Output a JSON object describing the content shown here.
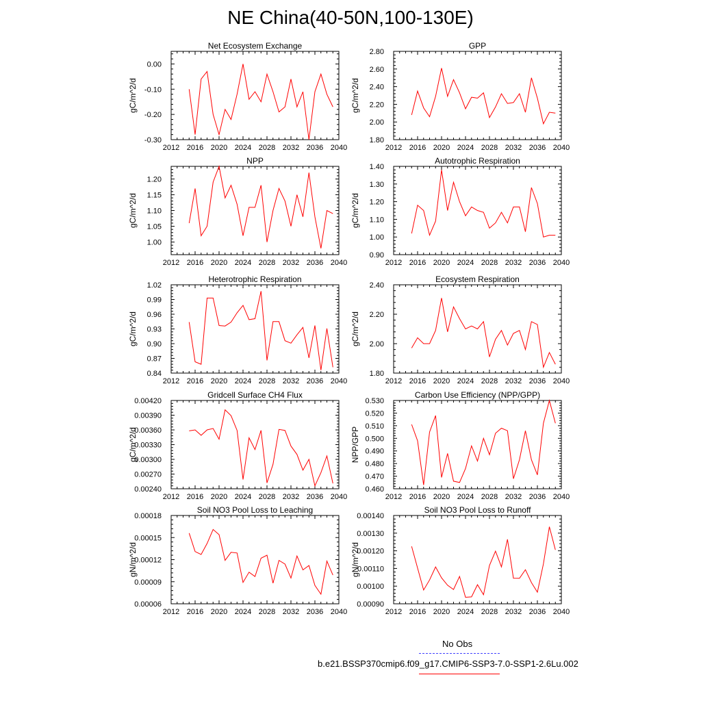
{
  "title": "NE China(40-50N,100-130E)",
  "colors": {
    "series": "#ff0000",
    "obs": "#4040ff",
    "axis": "#000000"
  },
  "legend": {
    "obs_label": "No Obs",
    "model_label": "b.e21.BSSP370cmip6.f09_g17.CMIP6-SSP3-7.0-SSP1-2.6Lu.002"
  },
  "chart_data": [
    {
      "type": "line",
      "title": "Net Ecosystem Exchange",
      "ylabel": "gC/m^2/d",
      "xlabel": "",
      "xlim": [
        2012,
        2040
      ],
      "ylim": [
        -0.3,
        0.05
      ],
      "xticks": [
        "2012",
        "2016",
        "2020",
        "2024",
        "2028",
        "2032",
        "2036",
        "2040"
      ],
      "yticks": [
        "-0.30",
        "-0.20",
        "-0.10",
        "0.00"
      ],
      "ytick_values": [
        -0.3,
        -0.2,
        -0.1,
        0.0
      ],
      "series": [
        {
          "x": [
            2015,
            2016,
            2017,
            2018,
            2019,
            2020,
            2021,
            2022,
            2023,
            2024,
            2025,
            2026,
            2027,
            2028,
            2029,
            2030,
            2031,
            2032,
            2033,
            2034,
            2035,
            2036,
            2037,
            2038,
            2039
          ],
          "values": [
            -0.1,
            -0.28,
            -0.06,
            -0.03,
            -0.2,
            -0.28,
            -0.18,
            -0.22,
            -0.12,
            0.0,
            -0.14,
            -0.11,
            -0.15,
            -0.04,
            -0.11,
            -0.19,
            -0.17,
            -0.06,
            -0.17,
            -0.11,
            -0.3,
            -0.11,
            -0.04,
            -0.12,
            -0.17
          ]
        }
      ]
    },
    {
      "type": "line",
      "title": "GPP",
      "ylabel": "gC/m^2/d",
      "xlabel": "",
      "xlim": [
        2012,
        2040
      ],
      "ylim": [
        1.8,
        2.8
      ],
      "xticks": [
        "2012",
        "2016",
        "2020",
        "2024",
        "2028",
        "2032",
        "2036",
        "2040"
      ],
      "yticks": [
        "1.80",
        "2.00",
        "2.20",
        "2.40",
        "2.60",
        "2.80"
      ],
      "ytick_values": [
        1.8,
        2.0,
        2.2,
        2.4,
        2.6,
        2.8
      ],
      "series": [
        {
          "x": [
            2015,
            2016,
            2017,
            2018,
            2019,
            2020,
            2021,
            2022,
            2023,
            2024,
            2025,
            2026,
            2027,
            2028,
            2029,
            2030,
            2031,
            2032,
            2033,
            2034,
            2035,
            2036,
            2037,
            2038,
            2039
          ],
          "values": [
            2.08,
            2.35,
            2.16,
            2.06,
            2.29,
            2.61,
            2.29,
            2.48,
            2.33,
            2.15,
            2.28,
            2.27,
            2.33,
            2.05,
            2.17,
            2.32,
            2.21,
            2.22,
            2.32,
            2.11,
            2.5,
            2.27,
            1.98,
            2.11,
            2.1
          ]
        }
      ]
    },
    {
      "type": "line",
      "title": "NPP",
      "ylabel": "gC/m^2/d",
      "xlabel": "",
      "xlim": [
        2012,
        2040
      ],
      "ylim": [
        0.96,
        1.24
      ],
      "xticks": [
        "2012",
        "2016",
        "2020",
        "2024",
        "2028",
        "2032",
        "2036",
        "2040"
      ],
      "yticks": [
        "1.00",
        "1.05",
        "1.10",
        "1.15",
        "1.20"
      ],
      "ytick_values": [
        1.0,
        1.05,
        1.1,
        1.15,
        1.2
      ],
      "series": [
        {
          "x": [
            2015,
            2016,
            2017,
            2018,
            2019,
            2020,
            2021,
            2022,
            2023,
            2024,
            2025,
            2026,
            2027,
            2028,
            2029,
            2030,
            2031,
            2032,
            2033,
            2034,
            2035,
            2036,
            2037,
            2038,
            2039
          ],
          "values": [
            1.06,
            1.17,
            1.02,
            1.05,
            1.19,
            1.24,
            1.14,
            1.18,
            1.12,
            1.02,
            1.11,
            1.11,
            1.18,
            1.0,
            1.1,
            1.17,
            1.13,
            1.05,
            1.15,
            1.08,
            1.22,
            1.08,
            0.98,
            1.1,
            1.09
          ]
        }
      ]
    },
    {
      "type": "line",
      "title": "Autotrophic Respiration",
      "ylabel": "gC/m^2/d",
      "xlabel": "",
      "xlim": [
        2012,
        2040
      ],
      "ylim": [
        0.9,
        1.4
      ],
      "xticks": [
        "2012",
        "2016",
        "2020",
        "2024",
        "2028",
        "2032",
        "2036",
        "2040"
      ],
      "yticks": [
        "0.90",
        "1.00",
        "1.10",
        "1.20",
        "1.30",
        "1.40"
      ],
      "ytick_values": [
        0.9,
        1.0,
        1.1,
        1.2,
        1.3,
        1.4
      ],
      "series": [
        {
          "x": [
            2015,
            2016,
            2017,
            2018,
            2019,
            2020,
            2021,
            2022,
            2023,
            2024,
            2025,
            2026,
            2027,
            2028,
            2029,
            2030,
            2031,
            2032,
            2033,
            2034,
            2035,
            2036,
            2037,
            2038,
            2039
          ],
          "values": [
            1.02,
            1.18,
            1.15,
            1.01,
            1.09,
            1.38,
            1.15,
            1.31,
            1.2,
            1.12,
            1.17,
            1.15,
            1.14,
            1.05,
            1.08,
            1.14,
            1.08,
            1.17,
            1.17,
            1.03,
            1.28,
            1.19,
            1.0,
            1.01,
            1.01
          ]
        }
      ]
    },
    {
      "type": "line",
      "title": "Heterotrophic Respiration",
      "ylabel": "gC/m^2/d",
      "xlabel": "",
      "xlim": [
        2012,
        2040
      ],
      "ylim": [
        0.84,
        1.02
      ],
      "xticks": [
        "2012",
        "2016",
        "2020",
        "2024",
        "2028",
        "2032",
        "2036",
        "2040"
      ],
      "yticks": [
        "0.84",
        "0.87",
        "0.90",
        "0.93",
        "0.96",
        "0.99",
        "1.02"
      ],
      "ytick_values": [
        0.84,
        0.87,
        0.9,
        0.93,
        0.96,
        0.99,
        1.02
      ],
      "series": [
        {
          "x": [
            2015,
            2016,
            2017,
            2018,
            2019,
            2020,
            2021,
            2022,
            2023,
            2024,
            2025,
            2026,
            2027,
            2028,
            2029,
            2030,
            2031,
            2032,
            2033,
            2034,
            2035,
            2036,
            2037,
            2038,
            2039
          ],
          "values": [
            0.944,
            0.863,
            0.858,
            0.993,
            0.993,
            0.937,
            0.936,
            0.944,
            0.963,
            0.978,
            0.949,
            0.951,
            1.007,
            0.866,
            0.945,
            0.945,
            0.906,
            0.901,
            0.918,
            0.933,
            0.871,
            0.937,
            0.846,
            0.931,
            0.852
          ]
        }
      ]
    },
    {
      "type": "line",
      "title": "Ecosystem Respiration",
      "ylabel": "gC/m^2/d",
      "xlabel": "",
      "xlim": [
        2012,
        2040
      ],
      "ylim": [
        1.8,
        2.4
      ],
      "xticks": [
        "2012",
        "2016",
        "2020",
        "2024",
        "2028",
        "2032",
        "2036",
        "2040"
      ],
      "yticks": [
        "1.80",
        "2.00",
        "2.20",
        "2.40"
      ],
      "ytick_values": [
        1.8,
        2.0,
        2.2,
        2.4
      ],
      "series": [
        {
          "x": [
            2015,
            2016,
            2017,
            2018,
            2019,
            2020,
            2021,
            2022,
            2023,
            2024,
            2025,
            2026,
            2027,
            2028,
            2029,
            2030,
            2031,
            2032,
            2033,
            2034,
            2035,
            2036,
            2037,
            2038,
            2039
          ],
          "values": [
            1.97,
            2.04,
            2.0,
            2.0,
            2.09,
            2.31,
            2.08,
            2.25,
            2.17,
            2.1,
            2.12,
            2.1,
            2.15,
            1.91,
            2.03,
            2.09,
            1.99,
            2.07,
            2.09,
            1.96,
            2.15,
            2.13,
            1.84,
            1.94,
            1.86
          ]
        }
      ]
    },
    {
      "type": "line",
      "title": "Gridcell Surface CH4 Flux",
      "ylabel": "gC/m^2/d",
      "xlabel": "",
      "xlim": [
        2012,
        2040
      ],
      "ylim": [
        0.0024,
        0.0042
      ],
      "xticks": [
        "2012",
        "2016",
        "2020",
        "2024",
        "2028",
        "2032",
        "2036",
        "2040"
      ],
      "yticks": [
        "0.00240",
        "0.00270",
        "0.00300",
        "0.00330",
        "0.00360",
        "0.00390",
        "0.00420"
      ],
      "ytick_values": [
        0.0024,
        0.0027,
        0.003,
        0.0033,
        0.0036,
        0.0039,
        0.0042
      ],
      "series": [
        {
          "x": [
            2015,
            2016,
            2017,
            2018,
            2019,
            2020,
            2021,
            2022,
            2023,
            2024,
            2025,
            2026,
            2027,
            2028,
            2029,
            2030,
            2031,
            2032,
            2033,
            2034,
            2035,
            2036,
            2037,
            2038,
            2039
          ],
          "values": [
            0.00358,
            0.0036,
            0.00349,
            0.0036,
            0.00363,
            0.00341,
            0.00401,
            0.00389,
            0.00359,
            0.00259,
            0.00344,
            0.0032,
            0.00359,
            0.00252,
            0.0029,
            0.00361,
            0.00359,
            0.00327,
            0.0031,
            0.00278,
            0.003,
            0.00246,
            0.00273,
            0.00307,
            0.00251
          ]
        }
      ]
    },
    {
      "type": "line",
      "title": "Carbon Use Efficiency (NPP/GPP)",
      "ylabel": "NPP/GPP",
      "xlabel": "",
      "xlim": [
        2012,
        2040
      ],
      "ylim": [
        0.46,
        0.53
      ],
      "xticks": [
        "2012",
        "2016",
        "2020",
        "2024",
        "2028",
        "2032",
        "2036",
        "2040"
      ],
      "yticks": [
        "0.460",
        "0.470",
        "0.480",
        "0.490",
        "0.500",
        "0.510",
        "0.520",
        "0.530"
      ],
      "ytick_values": [
        0.46,
        0.47,
        0.48,
        0.49,
        0.5,
        0.51,
        0.52,
        0.53
      ],
      "series": [
        {
          "x": [
            2015,
            2016,
            2017,
            2018,
            2019,
            2020,
            2021,
            2022,
            2023,
            2024,
            2025,
            2026,
            2027,
            2028,
            2029,
            2030,
            2031,
            2032,
            2033,
            2034,
            2035,
            2036,
            2037,
            2038,
            2039
          ],
          "values": [
            0.511,
            0.498,
            0.463,
            0.505,
            0.518,
            0.469,
            0.488,
            0.466,
            0.465,
            0.476,
            0.494,
            0.482,
            0.5,
            0.487,
            0.504,
            0.508,
            0.506,
            0.468,
            0.483,
            0.506,
            0.483,
            0.471,
            0.512,
            0.53,
            0.512
          ]
        }
      ]
    },
    {
      "type": "line",
      "title": "Soil NO3 Pool Loss to Leaching",
      "ylabel": "gN/m^2/d",
      "xlabel": "",
      "xlim": [
        2012,
        2040
      ],
      "ylim": [
        6e-05,
        0.00018
      ],
      "xticks": [
        "2012",
        "2016",
        "2020",
        "2024",
        "2028",
        "2032",
        "2036",
        "2040"
      ],
      "yticks": [
        "0.00006",
        "0.00009",
        "0.00012",
        "0.00015",
        "0.00018"
      ],
      "ytick_values": [
        6e-05,
        9e-05,
        0.00012,
        0.00015,
        0.00018
      ],
      "series": [
        {
          "x": [
            2015,
            2016,
            2017,
            2018,
            2019,
            2020,
            2021,
            2022,
            2023,
            2024,
            2025,
            2026,
            2027,
            2028,
            2029,
            2030,
            2031,
            2032,
            2033,
            2034,
            2035,
            2036,
            2037,
            2038,
            2039
          ],
          "values": [
            0.000156,
            0.000131,
            0.000127,
            0.000142,
            0.000161,
            0.000154,
            0.000119,
            0.00013,
            0.000129,
            8.9e-05,
            0.000103,
            9.7e-05,
            0.000122,
            0.000126,
            8.8e-05,
            0.000119,
            0.000114,
            9.5e-05,
            0.000125,
            0.000106,
            0.000112,
            8.5e-05,
            7.3e-05,
            0.000118,
            9.9e-05
          ]
        }
      ]
    },
    {
      "type": "line",
      "title": "Soil NO3 Pool Loss to Runoff",
      "ylabel": "gN/m^2/d",
      "xlabel": "",
      "xlim": [
        2012,
        2040
      ],
      "ylim": [
        0.0009,
        0.0014
      ],
      "xticks": [
        "2012",
        "2016",
        "2020",
        "2024",
        "2028",
        "2032",
        "2036",
        "2040"
      ],
      "yticks": [
        "0.00090",
        "0.00100",
        "0.00110",
        "0.00120",
        "0.00130",
        "0.00140"
      ],
      "ytick_values": [
        0.0009,
        0.001,
        0.0011,
        0.0012,
        0.0013,
        0.0014
      ],
      "series": [
        {
          "x": [
            2015,
            2016,
            2017,
            2018,
            2019,
            2020,
            2021,
            2022,
            2023,
            2024,
            2025,
            2026,
            2027,
            2028,
            2029,
            2030,
            2031,
            2032,
            2033,
            2034,
            2035,
            2036,
            2037,
            2038,
            2039
          ],
          "values": [
            0.001225,
            0.001102,
            0.000978,
            0.001035,
            0.001109,
            0.001047,
            0.001005,
            0.000981,
            0.001055,
            0.000937,
            0.000939,
            0.001008,
            0.000951,
            0.001117,
            0.001198,
            0.001109,
            0.001265,
            0.001045,
            0.001044,
            0.001093,
            0.00102,
            0.000966,
            0.001126,
            0.001336,
            0.001205
          ]
        }
      ]
    }
  ]
}
